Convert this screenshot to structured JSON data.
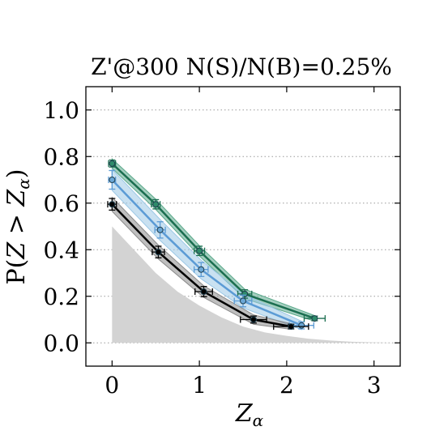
{
  "chart_data": {
    "type": "line",
    "title": "Z'@300 N(S)/N(B)=0.25%",
    "xlabel": "Z_α",
    "ylabel": "P(Z > Z_α)",
    "xlim": [
      -0.3,
      3.3
    ],
    "ylim": [
      -0.1,
      1.1
    ],
    "xticks": [
      0,
      1,
      2,
      3
    ],
    "xtick_labels": [
      "0",
      "1",
      "2",
      "3"
    ],
    "yticks": [
      0.0,
      0.2,
      0.4,
      0.6,
      0.8,
      1.0
    ],
    "ytick_labels": [
      "0.0",
      "0.2",
      "0.4",
      "0.6",
      "0.8",
      "1.0"
    ],
    "grid": "horizontal-dotted",
    "background_curve": {
      "color": "#d3d3d3",
      "x": [
        0.0,
        0.25,
        0.5,
        0.75,
        1.0,
        1.25,
        1.5,
        1.75,
        2.0,
        2.25,
        2.5,
        2.75,
        3.0,
        3.3
      ],
      "y": [
        0.5,
        0.4,
        0.3,
        0.22,
        0.16,
        0.11,
        0.07,
        0.045,
        0.03,
        0.018,
        0.01,
        0.005,
        0.002,
        0.0
      ]
    },
    "series": [
      {
        "color": "#1b6e50",
        "band_color": "#5aa88a",
        "marker_color": "#2e8b6a",
        "x": [
          0.0,
          0.5,
          1.0,
          1.52,
          2.32
        ],
        "y": [
          0.77,
          0.595,
          0.395,
          0.21,
          0.105
        ],
        "xerr": [
          0.04,
          0.05,
          0.06,
          0.08,
          0.12
        ],
        "yerr": [
          0.015,
          0.02,
          0.02,
          0.018,
          0.01
        ],
        "band_half": [
          0.02,
          0.022,
          0.022,
          0.02,
          0.012
        ]
      },
      {
        "color": "#5b9bd5",
        "band_color": "#9cc8e6",
        "marker_color": "#6aa7d6",
        "x": [
          0.0,
          0.55,
          1.02,
          1.5,
          2.17
        ],
        "y": [
          0.7,
          0.485,
          0.315,
          0.18,
          0.075
        ],
        "xerr": [
          0.04,
          0.06,
          0.08,
          0.1,
          0.14
        ],
        "yerr": [
          0.04,
          0.035,
          0.03,
          0.025,
          0.015
        ],
        "band_half": [
          0.045,
          0.045,
          0.04,
          0.03,
          0.018
        ]
      },
      {
        "color": "#000000",
        "band_color": "#8a8a8a",
        "marker_color": "#000000",
        "x": [
          0.0,
          0.53,
          1.05,
          1.62,
          2.05
        ],
        "y": [
          0.595,
          0.39,
          0.22,
          0.1,
          0.07
        ],
        "xerr": [
          0.05,
          0.07,
          0.1,
          0.15,
          0.2
        ],
        "yerr": [
          0.025,
          0.025,
          0.022,
          0.015,
          0.01
        ],
        "band_half": [
          0.03,
          0.03,
          0.025,
          0.02,
          0.012
        ]
      }
    ]
  }
}
